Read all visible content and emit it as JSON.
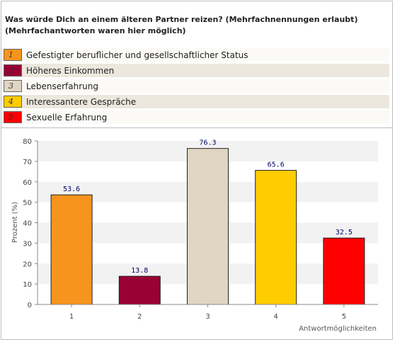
{
  "question": {
    "line1": "Was würde Dich an einem älteren Partner reizen? (Mehrfachnennungen erlaubt)",
    "line2": "(Mehrfachantworten waren hier möglich)"
  },
  "legend": [
    {
      "number": "1",
      "label": "Gefestigter beruflicher und gesellschaftlicher Status",
      "color": "#f7941d"
    },
    {
      "number": "2",
      "label": "Höheres Einkommen",
      "color": "#990033"
    },
    {
      "number": "3",
      "label": "Lebenserfahrung",
      "color": "#e0d6c1"
    },
    {
      "number": "4",
      "label": "Interessantere Gespräche",
      "color": "#ffcc00"
    },
    {
      "number": "5",
      "label": "Sexuelle Erfahrung",
      "color": "#ff0000"
    }
  ],
  "chart_data": {
    "type": "bar",
    "categories": [
      "1",
      "2",
      "3",
      "4",
      "5"
    ],
    "values": [
      53.6,
      13.8,
      76.3,
      65.6,
      32.5
    ],
    "value_labels": [
      "53.6",
      "13.8",
      "76.3",
      "65.6",
      "32.5"
    ],
    "colors": [
      "#f7941d",
      "#990033",
      "#e0d6c1",
      "#ffcc00",
      "#ff0000"
    ],
    "ylim": [
      0,
      80
    ],
    "yticks": [
      "0",
      "10",
      "20",
      "30",
      "40",
      "50",
      "60",
      "70",
      "80"
    ],
    "ylabel": "Prozent (%)",
    "xlabel": "Antwortmöglichkeiten",
    "grid": "alternating bands"
  }
}
